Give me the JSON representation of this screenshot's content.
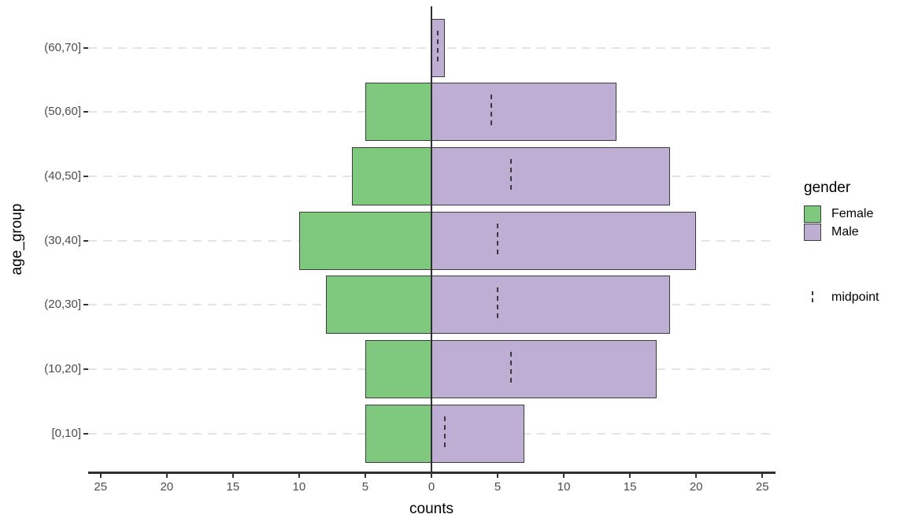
{
  "chart_data": {
    "type": "bar",
    "subtype": "population_pyramid_horizontal_diverging",
    "title": "",
    "xlabel": "counts",
    "ylabel": "age_group",
    "categories_top_to_bottom": [
      "(60,70]",
      "(50,60]",
      "(40,50]",
      "(30,40]",
      "(20,30]",
      "(10,20]",
      "[0,10]"
    ],
    "series": [
      {
        "name": "Female",
        "side": "left",
        "color": "#7FC97F",
        "values": [
          0,
          5,
          6,
          10,
          8,
          5,
          5
        ]
      },
      {
        "name": "Male",
        "side": "right",
        "color": "#BEAED4",
        "values": [
          1,
          14,
          18,
          20,
          18,
          17,
          7
        ]
      }
    ],
    "midpoints": {
      "name": "midpoint",
      "values": [
        0.5,
        4.5,
        6,
        5,
        5,
        6,
        1
      ]
    },
    "x_ticks": [
      {
        "value": -25,
        "label": "25"
      },
      {
        "value": -20,
        "label": "20"
      },
      {
        "value": -15,
        "label": "15"
      },
      {
        "value": -10,
        "label": "10"
      },
      {
        "value": -5,
        "label": "5"
      },
      {
        "value": 0,
        "label": "0"
      },
      {
        "value": 5,
        "label": "5"
      },
      {
        "value": 10,
        "label": "10"
      },
      {
        "value": 15,
        "label": "15"
      },
      {
        "value": 20,
        "label": "20"
      },
      {
        "value": 25,
        "label": "25"
      }
    ],
    "xlim": [
      -26,
      26
    ],
    "grid": "dashed horizontal gridlines at each category",
    "legend_position": "right",
    "legend": {
      "title": "gender",
      "midpoint_label": "midpoint"
    }
  },
  "styles": {
    "female_fill": "#7FC97F",
    "male_fill": "#BEAED4",
    "bar_border": "#3C3C3C",
    "gridline_color": "#E4E4E4",
    "axis_line_color": "#2F2F2F",
    "tick_label_color": "#4D4D4D",
    "title_color": "#000000",
    "background": "#FFFFFF"
  }
}
